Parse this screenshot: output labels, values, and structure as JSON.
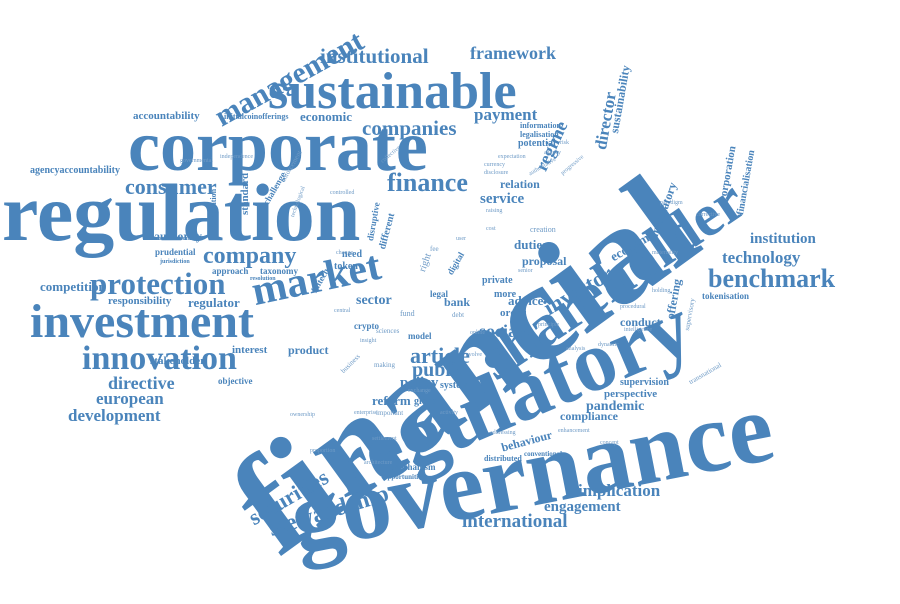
{
  "palette": {
    "word": "#4a84bb",
    "light_word": "#6f9bc6",
    "background": "#ffffff"
  },
  "words": {
    "financial": "financial",
    "governance": "governance",
    "regulation": "regulation",
    "regulatory": "regulatory",
    "corporate": "corporate",
    "shareholder": "shareholder",
    "sustainable": "sustainable",
    "investment": "investment",
    "market": "market",
    "innovation": "innovation",
    "protection": "protection",
    "management": "management",
    "benchmark": "benchmark",
    "stewardship": "stewardship",
    "securities": "securities",
    "consumer": "consumer",
    "finance": "finance",
    "company": "company",
    "companies": "companies",
    "institutional": "institutional",
    "framework": "framework",
    "international": "international",
    "implication": "implication",
    "engagement": "engagement",
    "technology": "technology",
    "institution": "institution",
    "investor": "investor",
    "article": "article",
    "public": "public",
    "social": "social",
    "directive": "directive",
    "european": "european",
    "development": "development",
    "competition": "competition",
    "responsibility": "responsibility",
    "regulator": "regulator",
    "stakeholder": "stakeholder",
    "accountability": "accountability",
    "agencyaccountability": "agencyaccountability",
    "initialcoinofferings": "initialcoinofferings",
    "economic": "economic",
    "payment": "payment",
    "regime": "regime",
    "director": "director",
    "sustainability": "sustainability",
    "corporation": "corporation",
    "financialisation": "financialisation",
    "mandatory": "mandatory",
    "economy": "economy",
    "tokenisation": "tokenisation",
    "offering": "offering",
    "conduct": "conduct",
    "pandemic": "pandemic",
    "compliance": "compliance",
    "behaviour": "behaviour",
    "perspective": "perspective",
    "supervision": "supervision",
    "sector": "sector",
    "policy": "policy",
    "reform": "reform",
    "system": "system",
    "duties": "duties",
    "proposal": "proposal",
    "service": "service",
    "relation": "relation",
    "advice": "advice",
    "more": "more",
    "order": "order",
    "private": "private",
    "bank": "bank",
    "legal": "legal",
    "interest": "interest",
    "product": "product",
    "objective": "objective",
    "standard": "standard",
    "authority": "authority",
    "prudential": "prudential",
    "approach": "approach",
    "need": "need",
    "token": "token",
    "fintech": "fintech",
    "crypto": "crypto",
    "mechanism": "mechanism",
    "incorporation": "incorporation",
    "disruptive": "disruptive",
    "different": "different",
    "information": "information",
    "legalisation": "legalisation",
    "potential": "potential",
    "taxonomy": "taxonomy",
    "challenge": "challenge",
    "enforcement": "enforcement",
    "transformation": "transformation",
    "jurisdiction": "jurisdiction",
    "resolution": "resolution",
    "digital": "digital",
    "model": "model",
    "global": "global",
    "distributed": "distributed",
    "conventional": "conventional",
    "opportunities": "opportunities",
    "important": "important",
    "creation": "creation",
    "intelligence": "intelligence",
    "procedural": "procedural",
    "materiality": "materiality",
    "transnational": "transnational",
    "expectation": "expectation",
    "collective": "collective",
    "disclosure": "disclosure",
    "raising": "raising",
    "paradigm": "paradigm",
    "insight": "insight",
    "principle": "principle",
    "activity": "activity",
    "controlled": "controlled",
    "change": "change",
    "central": "central",
    "making": "making",
    "business": "business",
    "sciences": "sciences",
    "fund": "fund",
    "debt": "debt",
    "right": "right",
    "fee": "fee",
    "senior": "senior",
    "cost": "cost",
    "user": "user",
    "online": "online",
    "evolve": "evolve",
    "exchange": "exchange",
    "enterprise": "enterprise",
    "ownership": "ownership",
    "settlement": "settlement",
    "architecture": "architecture",
    "proportion": "proportion",
    "addressing": "addressing",
    "enhancement": "enhancement",
    "risk": "risk",
    "currency": "currency",
    "agency": "agency",
    "authoritative": "authoritative",
    "progressive": "progressive",
    "concept": "concept",
    "governmental": "governmental",
    "independence": "independence",
    "technological": "technological",
    "corrective": "corrective",
    "supervisory": "supervisory",
    "analysis": "analysis",
    "holding": "holding",
    "dynamic": "dynamic"
  }
}
